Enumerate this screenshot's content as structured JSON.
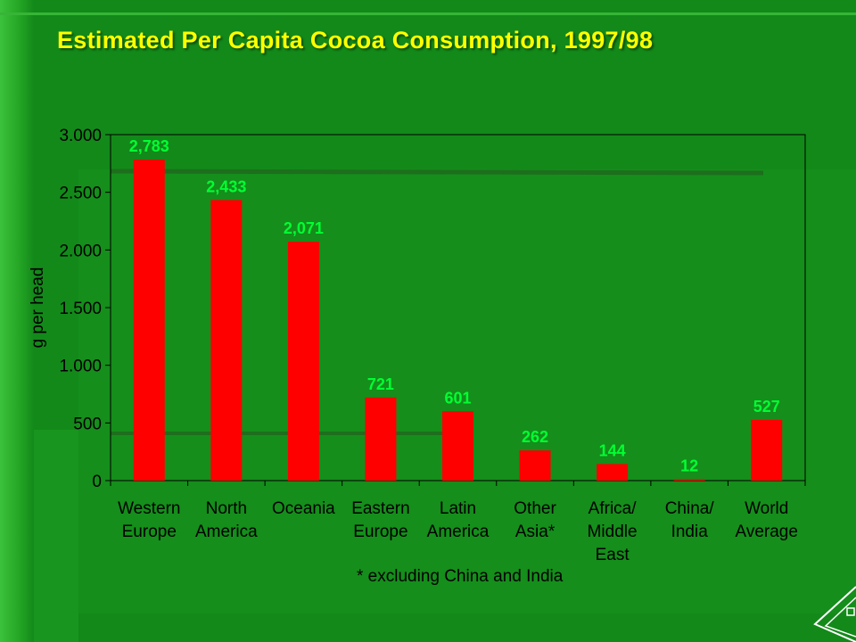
{
  "title": "Estimated Per Capita Cocoa Consumption, 1997/98",
  "footnote": "* excluding China and India",
  "colors": {
    "bar": "#ff0000",
    "data_label": "#00ff33",
    "axis": "#000000",
    "title": "#ffff00"
  },
  "chart_data": {
    "type": "bar",
    "title": "Estimated Per Capita Cocoa Consumption, 1997/98",
    "ylabel": "g per head",
    "ylim": [
      0,
      3000
    ],
    "yticks": [
      {
        "value": 0,
        "label": "0"
      },
      {
        "value": 500,
        "label": "500"
      },
      {
        "value": 1000,
        "label": "1.000"
      },
      {
        "value": 1500,
        "label": "1.500"
      },
      {
        "value": 2000,
        "label": "2.000"
      },
      {
        "value": 2500,
        "label": "2.500"
      },
      {
        "value": 3000,
        "label": "3.000"
      }
    ],
    "categories": [
      [
        "Western",
        "Europe"
      ],
      [
        "North",
        "America"
      ],
      [
        "Oceania"
      ],
      [
        "Eastern",
        "Europe"
      ],
      [
        "Latin",
        "America"
      ],
      [
        "Other",
        "Asia*"
      ],
      [
        "Africa/",
        "Middle",
        "East"
      ],
      [
        "China/",
        "India"
      ],
      [
        "World",
        "Average"
      ]
    ],
    "values": [
      2783,
      2433,
      2071,
      721,
      601,
      262,
      144,
      12,
      527
    ],
    "data_labels": [
      "2,783",
      "2,433",
      "2,071",
      "721",
      "601",
      "262",
      "144",
      "12",
      "527"
    ],
    "grid": false,
    "legend": "none"
  }
}
